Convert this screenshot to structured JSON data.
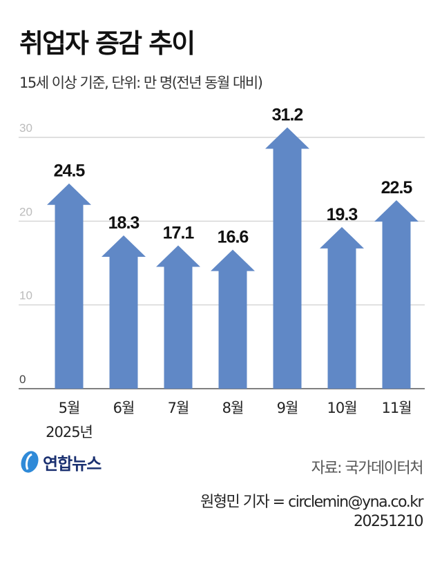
{
  "title": "취업자 증감 추이",
  "subtitle": "15세 이상 기준, 단위: 만 명(전년 동월 대비)",
  "chart_data": {
    "type": "bar",
    "bar_shape": "arrow",
    "categories": [
      "5월",
      "6월",
      "7월",
      "8월",
      "9월",
      "10월",
      "11월"
    ],
    "values": [
      24.5,
      18.3,
      17.1,
      16.6,
      31.2,
      19.3,
      22.5
    ],
    "data_labels": [
      "24.5",
      "18.3",
      "17.1",
      "16.6",
      "31.2",
      "19.3",
      "22.5"
    ],
    "x_sublabel": "2025년",
    "ylim": [
      0,
      30
    ],
    "yticks": [
      "0",
      "10",
      "20",
      "30"
    ],
    "grid": true,
    "bar_color": "#6088c6"
  },
  "footer": {
    "logo": "연합뉴스",
    "source": "자료: 국가데이터처",
    "byline": "원형민 기자 = circlemin@yna.co.kr",
    "date": "20251210"
  }
}
